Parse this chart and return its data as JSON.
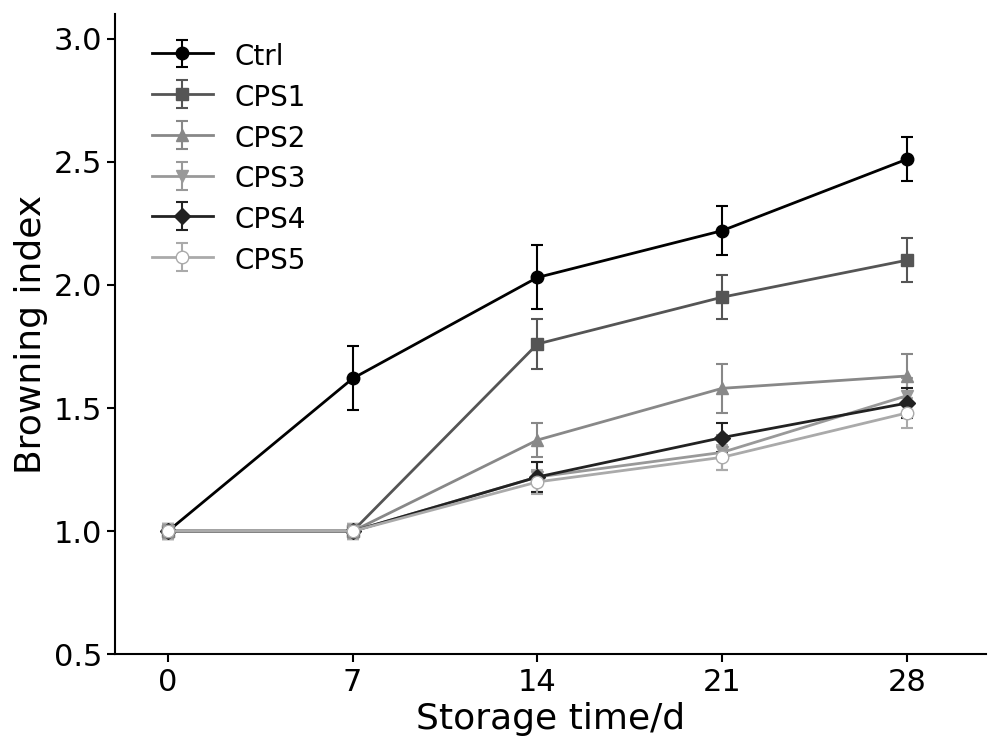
{
  "x": [
    0,
    7,
    14,
    21,
    28
  ],
  "series": [
    {
      "label": "Ctrl",
      "color": "#000000",
      "marker": "o",
      "marker_facecolor": "#000000",
      "linewidth": 2.0,
      "markersize": 9,
      "linestyle": "-",
      "y": [
        1.0,
        1.62,
        2.03,
        2.22,
        2.51
      ],
      "yerr": [
        0.03,
        0.13,
        0.13,
        0.1,
        0.09
      ]
    },
    {
      "label": "CPS1",
      "color": "#555555",
      "marker": "s",
      "marker_facecolor": "#555555",
      "linewidth": 2.0,
      "markersize": 9,
      "linestyle": "-",
      "y": [
        1.0,
        1.0,
        1.76,
        1.95,
        2.1
      ],
      "yerr": [
        0.03,
        0.03,
        0.1,
        0.09,
        0.09
      ]
    },
    {
      "label": "CPS2",
      "color": "#888888",
      "marker": "^",
      "marker_facecolor": "#888888",
      "linewidth": 2.0,
      "markersize": 9,
      "linestyle": "-",
      "y": [
        1.0,
        1.0,
        1.37,
        1.58,
        1.63
      ],
      "yerr": [
        0.03,
        0.03,
        0.07,
        0.1,
        0.09
      ]
    },
    {
      "label": "CPS3",
      "color": "#999999",
      "marker": "v",
      "marker_facecolor": "#999999",
      "linewidth": 2.0,
      "markersize": 9,
      "linestyle": "-",
      "y": [
        1.0,
        1.0,
        1.22,
        1.32,
        1.55
      ],
      "yerr": [
        0.03,
        0.03,
        0.06,
        0.07,
        0.07
      ]
    },
    {
      "label": "CPS4",
      "color": "#222222",
      "marker": "D",
      "marker_facecolor": "#222222",
      "linewidth": 2.0,
      "markersize": 8,
      "linestyle": "-",
      "y": [
        1.0,
        1.0,
        1.22,
        1.38,
        1.52
      ],
      "yerr": [
        0.03,
        0.03,
        0.06,
        0.06,
        0.06
      ]
    },
    {
      "label": "CPS5",
      "color": "#aaaaaa",
      "marker": "o",
      "marker_facecolor": "#ffffff",
      "linewidth": 2.0,
      "markersize": 9,
      "linestyle": "-",
      "y": [
        1.0,
        1.0,
        1.2,
        1.3,
        1.48
      ],
      "yerr": [
        0.03,
        0.03,
        0.05,
        0.05,
        0.06
      ]
    }
  ],
  "xlabel": "Storage time/d",
  "ylabel": "Browning index",
  "xlim": [
    -2,
    31
  ],
  "ylim": [
    0.5,
    3.1
  ],
  "xticks": [
    0,
    7,
    14,
    21,
    28
  ],
  "yticks": [
    0.5,
    1.0,
    1.5,
    2.0,
    2.5,
    3.0
  ],
  "xlabel_fontsize": 26,
  "ylabel_fontsize": 26,
  "tick_fontsize": 22,
  "legend_fontsize": 20
}
